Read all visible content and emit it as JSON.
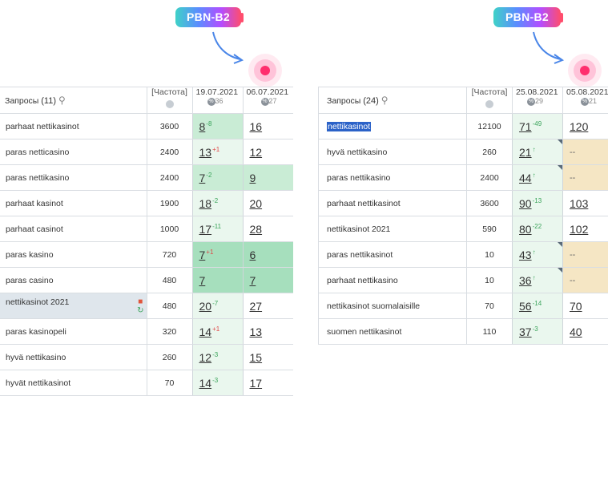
{
  "left": {
    "badge": "PBN-B2",
    "header": {
      "queries_label": "Запросы",
      "count": "(11)",
      "freq_label": "[Частота]",
      "date1": "19.07.2021",
      "date1_sub": "36",
      "date2": "06.07.2021",
      "date2_sub": "27"
    },
    "rows": [
      {
        "kw": "parhaat nettikasinot",
        "freq": "3600",
        "p1": "8",
        "c1": "-8",
        "p2": "16"
      },
      {
        "kw": "paras netticasino",
        "freq": "2400",
        "p1": "13",
        "c1": "+1",
        "p2": "12"
      },
      {
        "kw": "paras nettikasino",
        "freq": "2400",
        "p1": "7",
        "c1": "-2",
        "p2": "9"
      },
      {
        "kw": "parhaat kasinot",
        "freq": "1900",
        "p1": "18",
        "c1": "-2",
        "p2": "20"
      },
      {
        "kw": "parhaat casinot",
        "freq": "1000",
        "p1": "17",
        "c1": "-11",
        "p2": "28"
      },
      {
        "kw": "paras kasino",
        "freq": "720",
        "p1": "7",
        "c1": "+1",
        "p2": "6"
      },
      {
        "kw": "paras casino",
        "freq": "480",
        "p1": "7",
        "c1": "",
        "p2": "7"
      },
      {
        "kw": "nettikasinot 2021",
        "freq": "480",
        "p1": "20",
        "c1": "-7",
        "p2": "27"
      },
      {
        "kw": "paras kasinopeli",
        "freq": "320",
        "p1": "14",
        "c1": "+1",
        "p2": "13"
      },
      {
        "kw": "hyvä nettikasino",
        "freq": "260",
        "p1": "12",
        "c1": "-3",
        "p2": "15"
      },
      {
        "kw": "hyvät nettikasinot",
        "freq": "70",
        "p1": "14",
        "c1": "-3",
        "p2": "17"
      }
    ]
  },
  "right": {
    "badge": "PBN-B2",
    "header": {
      "queries_label": "Запросы",
      "count": "(24)",
      "freq_label": "[Частота]",
      "date1": "25.08.2021",
      "date1_sub": "29",
      "date2": "05.08.2021",
      "date2_sub": "21"
    },
    "rows": [
      {
        "kw": "nettikasinot",
        "freq": "12100",
        "p1": "71",
        "c1": "-49",
        "p2": "120"
      },
      {
        "kw": "hyvä nettikasino",
        "freq": "260",
        "p1": "21",
        "c1": "↑",
        "p2": "--"
      },
      {
        "kw": "paras nettikasino",
        "freq": "2400",
        "p1": "44",
        "c1": "↑",
        "p2": "--"
      },
      {
        "kw": "parhaat nettikasinot",
        "freq": "3600",
        "p1": "90",
        "c1": "-13",
        "p2": "103"
      },
      {
        "kw": "nettikasinot 2021",
        "freq": "590",
        "p1": "80",
        "c1": "-22",
        "p2": "102"
      },
      {
        "kw": "paras nettikasinot",
        "freq": "10",
        "p1": "43",
        "c1": "↑",
        "p2": "--"
      },
      {
        "kw": "parhaat nettikasino",
        "freq": "10",
        "p1": "36",
        "c1": "↑",
        "p2": "--"
      },
      {
        "kw": "nettikasinot suomalaisille",
        "freq": "70",
        "p1": "56",
        "c1": "-14",
        "p2": "70"
      },
      {
        "kw": "suomen nettikasinot",
        "freq": "110",
        "p1": "37",
        "c1": "-3",
        "p2": "40"
      }
    ]
  }
}
